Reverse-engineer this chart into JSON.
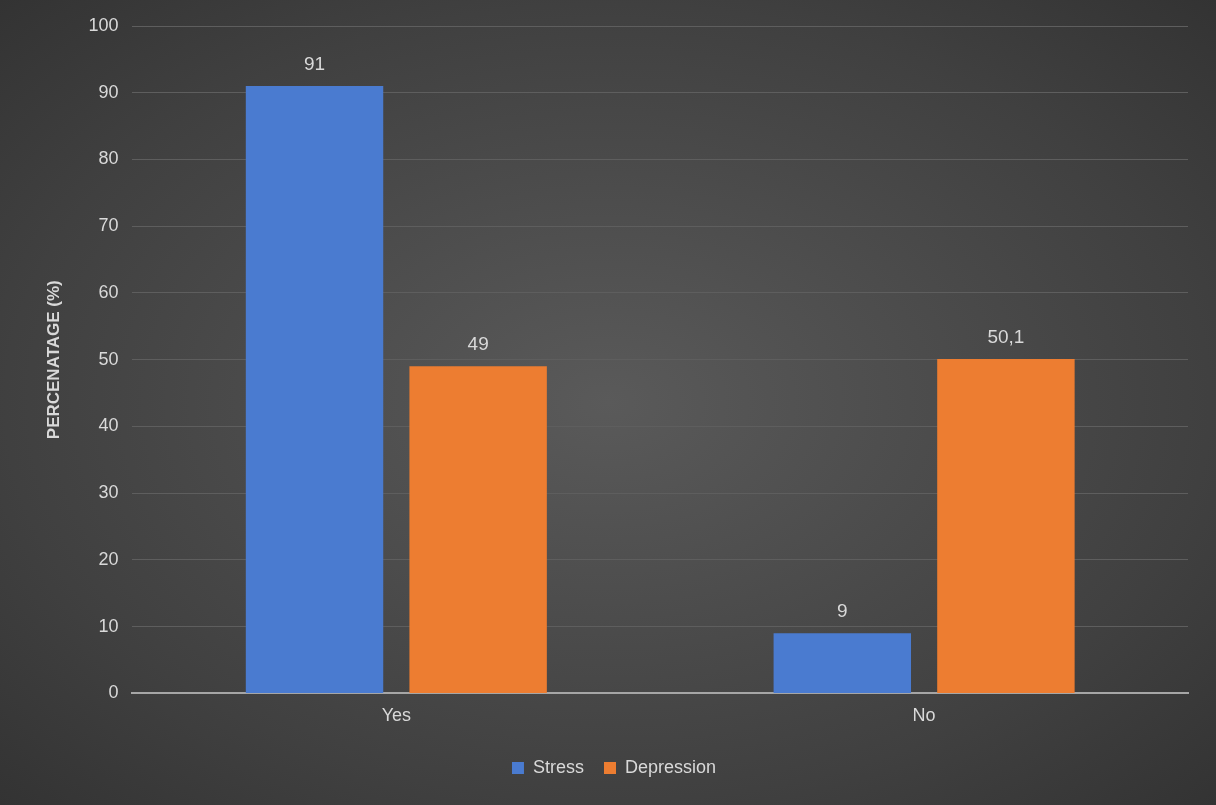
{
  "chart_data": {
    "type": "bar",
    "ylabel": "PERCENATAGE (%)",
    "categories": [
      "Yes",
      "No"
    ],
    "series": [
      {
        "name": "Stress",
        "color": "#4a7bd0",
        "values": [
          91,
          9
        ],
        "value_labels": [
          "91",
          "9"
        ]
      },
      {
        "name": "Depression",
        "color": "#ed7d31",
        "values": [
          49,
          50.1
        ],
        "value_labels": [
          "49",
          "50,1"
        ]
      }
    ],
    "ylim": [
      0,
      100
    ],
    "yticks": [
      0,
      10,
      20,
      30,
      40,
      50,
      60,
      70,
      80,
      90,
      100
    ],
    "grid": "y",
    "legend": "bottom"
  }
}
